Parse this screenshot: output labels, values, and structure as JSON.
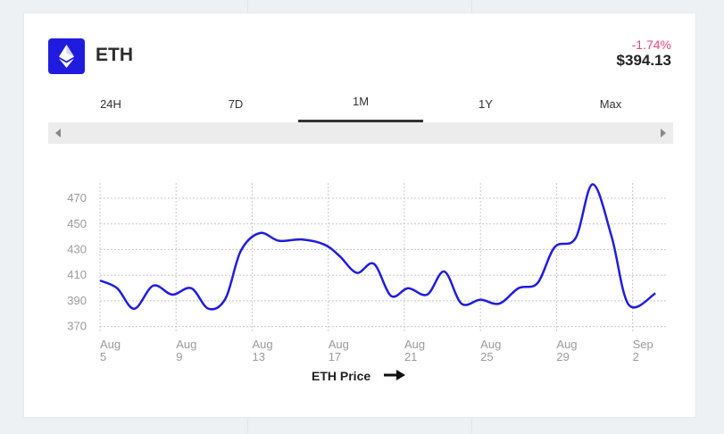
{
  "coin": {
    "name": "ETH",
    "change": "-1.74%",
    "price": "$394.13"
  },
  "tabs": [
    {
      "label": "24H",
      "active": false
    },
    {
      "label": "7D",
      "active": false
    },
    {
      "label": "1M",
      "active": true
    },
    {
      "label": "1Y",
      "active": false
    },
    {
      "label": "Max",
      "active": false
    }
  ],
  "colors": {
    "brand": "#1f1ce0",
    "negative": "#e8457a",
    "line": "#1f1ce0"
  },
  "icons": {
    "coin": "ethereum-icon",
    "scroll_left": "scroll-left-icon",
    "scroll_right": "scroll-right-icon",
    "legend": "arrow-right-icon"
  },
  "chart_data": {
    "type": "line",
    "legend": "ETH Price",
    "legend_position": "bottom-center",
    "grid": true,
    "y_ticks": [
      370,
      390,
      410,
      430,
      450,
      470
    ],
    "x_ticks": [
      {
        "line1": "Aug",
        "line2": "5",
        "day": 0
      },
      {
        "line1": "Aug",
        "line2": "9",
        "day": 4
      },
      {
        "line1": "Aug",
        "line2": "13",
        "day": 8
      },
      {
        "line1": "Aug",
        "line2": "17",
        "day": 12
      },
      {
        "line1": "Aug",
        "line2": "21",
        "day": 16
      },
      {
        "line1": "Aug",
        "line2": "25",
        "day": 20
      },
      {
        "line1": "Aug",
        "line2": "29",
        "day": 24
      },
      {
        "line1": "Sep",
        "line2": "2",
        "day": 28
      }
    ],
    "ylim": [
      360,
      477
    ],
    "xlim": [
      0,
      29.8
    ],
    "series": [
      {
        "name": "ETH Price",
        "points": [
          [
            0,
            401
          ],
          [
            0.9,
            395
          ],
          [
            1.8,
            379
          ],
          [
            2.8,
            397
          ],
          [
            3.8,
            390
          ],
          [
            4.8,
            395
          ],
          [
            5.7,
            379
          ],
          [
            6.6,
            387
          ],
          [
            7.4,
            424
          ],
          [
            8.4,
            438
          ],
          [
            9.4,
            432
          ],
          [
            10.6,
            433
          ],
          [
            11.8,
            429
          ],
          [
            12.6,
            420
          ],
          [
            13.5,
            407
          ],
          [
            14.4,
            414
          ],
          [
            15.3,
            389
          ],
          [
            16.2,
            395
          ],
          [
            17.2,
            390
          ],
          [
            18.1,
            408
          ],
          [
            19,
            383
          ],
          [
            20,
            386
          ],
          [
            21,
            383
          ],
          [
            22,
            395
          ],
          [
            23,
            399
          ],
          [
            23.9,
            427
          ],
          [
            25,
            434
          ],
          [
            25.9,
            476
          ],
          [
            26.9,
            435
          ],
          [
            27.8,
            382
          ],
          [
            29.2,
            391
          ]
        ]
      }
    ]
  }
}
